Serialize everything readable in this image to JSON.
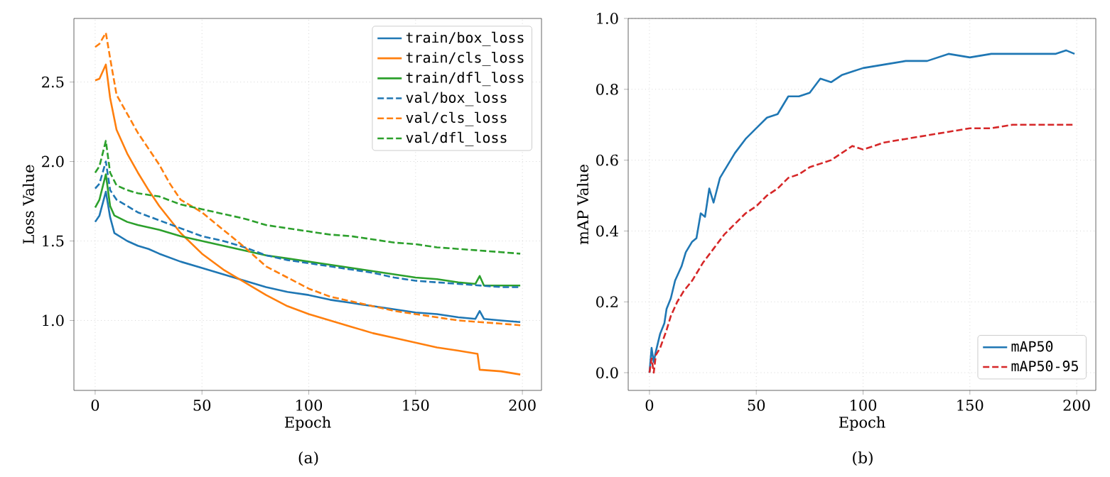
{
  "chart_data": [
    {
      "type": "line",
      "xlabel": "Epoch",
      "ylabel": "Loss Value",
      "annotations": [
        "(a)"
      ],
      "grid": true,
      "legend": "top right",
      "xlim": [
        -9.95,
        208.95
      ],
      "ylim": [
        0.56,
        2.9
      ],
      "xticks": [
        0,
        50,
        100,
        150,
        200
      ],
      "yticks": [
        {
          "value": 1.0,
          "label": "1.0"
        },
        {
          "value": 1.5,
          "label": "1.5"
        },
        {
          "value": 2.0,
          "label": "2.0"
        },
        {
          "value": 2.5,
          "label": "2.5"
        }
      ],
      "series": [
        {
          "name": "train/box_loss",
          "color": "#1f77b4",
          "line_style": "solid",
          "x": [
            0,
            2,
            5,
            7,
            9,
            15,
            20,
            25,
            30,
            40,
            50,
            60,
            70,
            80,
            90,
            100,
            110,
            120,
            130,
            140,
            150,
            160,
            170,
            178,
            180,
            182,
            190,
            199
          ],
          "values": [
            1.62,
            1.66,
            1.81,
            1.65,
            1.55,
            1.5,
            1.47,
            1.45,
            1.42,
            1.37,
            1.33,
            1.29,
            1.25,
            1.21,
            1.18,
            1.16,
            1.13,
            1.11,
            1.09,
            1.07,
            1.05,
            1.04,
            1.02,
            1.01,
            1.06,
            1.01,
            1.0,
            0.99
          ]
        },
        {
          "name": "train/cls_loss",
          "color": "#ff7f0e",
          "line_style": "solid",
          "x": [
            0,
            2,
            5,
            7,
            10,
            15,
            20,
            25,
            30,
            40,
            50,
            60,
            70,
            80,
            90,
            100,
            110,
            120,
            130,
            140,
            150,
            160,
            170,
            179,
            180,
            190,
            199
          ],
          "values": [
            2.51,
            2.52,
            2.61,
            2.4,
            2.2,
            2.05,
            1.93,
            1.82,
            1.72,
            1.55,
            1.42,
            1.32,
            1.24,
            1.16,
            1.09,
            1.04,
            1.0,
            0.96,
            0.92,
            0.89,
            0.86,
            0.83,
            0.81,
            0.79,
            0.69,
            0.68,
            0.66
          ]
        },
        {
          "name": "train/dfl_loss",
          "color": "#2ca02c",
          "line_style": "solid",
          "x": [
            0,
            2,
            5,
            7,
            9,
            15,
            20,
            30,
            40,
            50,
            60,
            70,
            80,
            90,
            100,
            110,
            120,
            130,
            140,
            150,
            160,
            170,
            178,
            180,
            182,
            190,
            199
          ],
          "values": [
            1.71,
            1.76,
            1.92,
            1.72,
            1.66,
            1.62,
            1.6,
            1.57,
            1.53,
            1.5,
            1.47,
            1.44,
            1.41,
            1.39,
            1.37,
            1.35,
            1.33,
            1.31,
            1.29,
            1.27,
            1.26,
            1.24,
            1.23,
            1.28,
            1.22,
            1.22,
            1.22
          ]
        },
        {
          "name": "val/box_loss",
          "color": "#1f77b4",
          "line_style": "dashed",
          "x": [
            0,
            2,
            5,
            7,
            10,
            15,
            20,
            30,
            40,
            50,
            60,
            70,
            80,
            90,
            100,
            110,
            120,
            130,
            140,
            150,
            160,
            170,
            180,
            190,
            199
          ],
          "values": [
            1.83,
            1.86,
            2.0,
            1.82,
            1.76,
            1.72,
            1.68,
            1.63,
            1.58,
            1.53,
            1.5,
            1.46,
            1.41,
            1.38,
            1.36,
            1.34,
            1.32,
            1.3,
            1.27,
            1.25,
            1.24,
            1.23,
            1.22,
            1.21,
            1.21
          ]
        },
        {
          "name": "val/cls_loss",
          "color": "#ff7f0e",
          "line_style": "dashed",
          "x": [
            0,
            2,
            5,
            7,
            10,
            15,
            20,
            25,
            30,
            35,
            40,
            50,
            60,
            70,
            80,
            90,
            100,
            110,
            120,
            130,
            140,
            150,
            160,
            170,
            180,
            190,
            199
          ],
          "values": [
            2.72,
            2.74,
            2.81,
            2.65,
            2.42,
            2.3,
            2.18,
            2.08,
            1.98,
            1.86,
            1.76,
            1.68,
            1.57,
            1.46,
            1.34,
            1.27,
            1.2,
            1.15,
            1.12,
            1.09,
            1.06,
            1.04,
            1.02,
            1.0,
            0.99,
            0.98,
            0.97
          ]
        },
        {
          "name": "val/dfl_loss",
          "color": "#2ca02c",
          "line_style": "dashed",
          "x": [
            0,
            2,
            5,
            7,
            10,
            15,
            20,
            30,
            40,
            50,
            60,
            70,
            80,
            90,
            100,
            110,
            120,
            130,
            140,
            150,
            160,
            170,
            180,
            190,
            199
          ],
          "values": [
            1.93,
            1.97,
            2.13,
            1.93,
            1.85,
            1.82,
            1.8,
            1.78,
            1.73,
            1.7,
            1.67,
            1.64,
            1.6,
            1.58,
            1.56,
            1.54,
            1.53,
            1.51,
            1.49,
            1.48,
            1.46,
            1.45,
            1.44,
            1.43,
            1.42
          ]
        }
      ]
    },
    {
      "type": "line",
      "xlabel": "Epoch",
      "ylabel": "mAP Value",
      "annotations": [
        "(b)"
      ],
      "grid": true,
      "legend": "bottom right",
      "xlim": [
        -9.95,
        208.95
      ],
      "ylim": [
        -0.05,
        1.0
      ],
      "xticks": [
        0,
        50,
        100,
        150,
        200
      ],
      "yticks": [
        {
          "value": 0.0,
          "label": "0.0"
        },
        {
          "value": 0.2,
          "label": "0.2"
        },
        {
          "value": 0.4,
          "label": "0.4"
        },
        {
          "value": 0.6,
          "label": "0.6"
        },
        {
          "value": 0.8,
          "label": "0.8"
        },
        {
          "value": 1.0,
          "label": "1.0"
        }
      ],
      "series": [
        {
          "name": "mAP50",
          "color": "#1f77b4",
          "line_style": "solid",
          "x": [
            0,
            1,
            2,
            3,
            5,
            7,
            8,
            10,
            12,
            15,
            17,
            20,
            22,
            24,
            26,
            28,
            30,
            33,
            36,
            40,
            45,
            50,
            55,
            60,
            65,
            70,
            75,
            80,
            85,
            90,
            95,
            100,
            110,
            120,
            130,
            140,
            150,
            160,
            170,
            180,
            190,
            195,
            199
          ],
          "values": [
            0.0,
            0.07,
            0.03,
            0.06,
            0.11,
            0.14,
            0.18,
            0.21,
            0.26,
            0.3,
            0.34,
            0.37,
            0.38,
            0.45,
            0.44,
            0.52,
            0.48,
            0.55,
            0.58,
            0.62,
            0.66,
            0.69,
            0.72,
            0.73,
            0.78,
            0.78,
            0.79,
            0.83,
            0.82,
            0.84,
            0.85,
            0.86,
            0.87,
            0.88,
            0.88,
            0.9,
            0.89,
            0.9,
            0.9,
            0.9,
            0.9,
            0.91,
            0.9
          ]
        },
        {
          "name": "mAP50-95",
          "color": "#d62728",
          "line_style": "dashed",
          "x": [
            0,
            1,
            2,
            3,
            5,
            8,
            10,
            13,
            16,
            20,
            25,
            30,
            35,
            40,
            45,
            50,
            55,
            60,
            65,
            70,
            75,
            80,
            85,
            90,
            95,
            100,
            110,
            120,
            130,
            140,
            150,
            160,
            170,
            180,
            190,
            199
          ],
          "values": [
            0.0,
            0.04,
            0.0,
            0.05,
            0.07,
            0.12,
            0.16,
            0.2,
            0.23,
            0.26,
            0.31,
            0.35,
            0.39,
            0.42,
            0.45,
            0.47,
            0.5,
            0.52,
            0.55,
            0.56,
            0.58,
            0.59,
            0.6,
            0.62,
            0.64,
            0.63,
            0.65,
            0.66,
            0.67,
            0.68,
            0.69,
            0.69,
            0.7,
            0.7,
            0.7,
            0.7
          ]
        }
      ]
    }
  ]
}
